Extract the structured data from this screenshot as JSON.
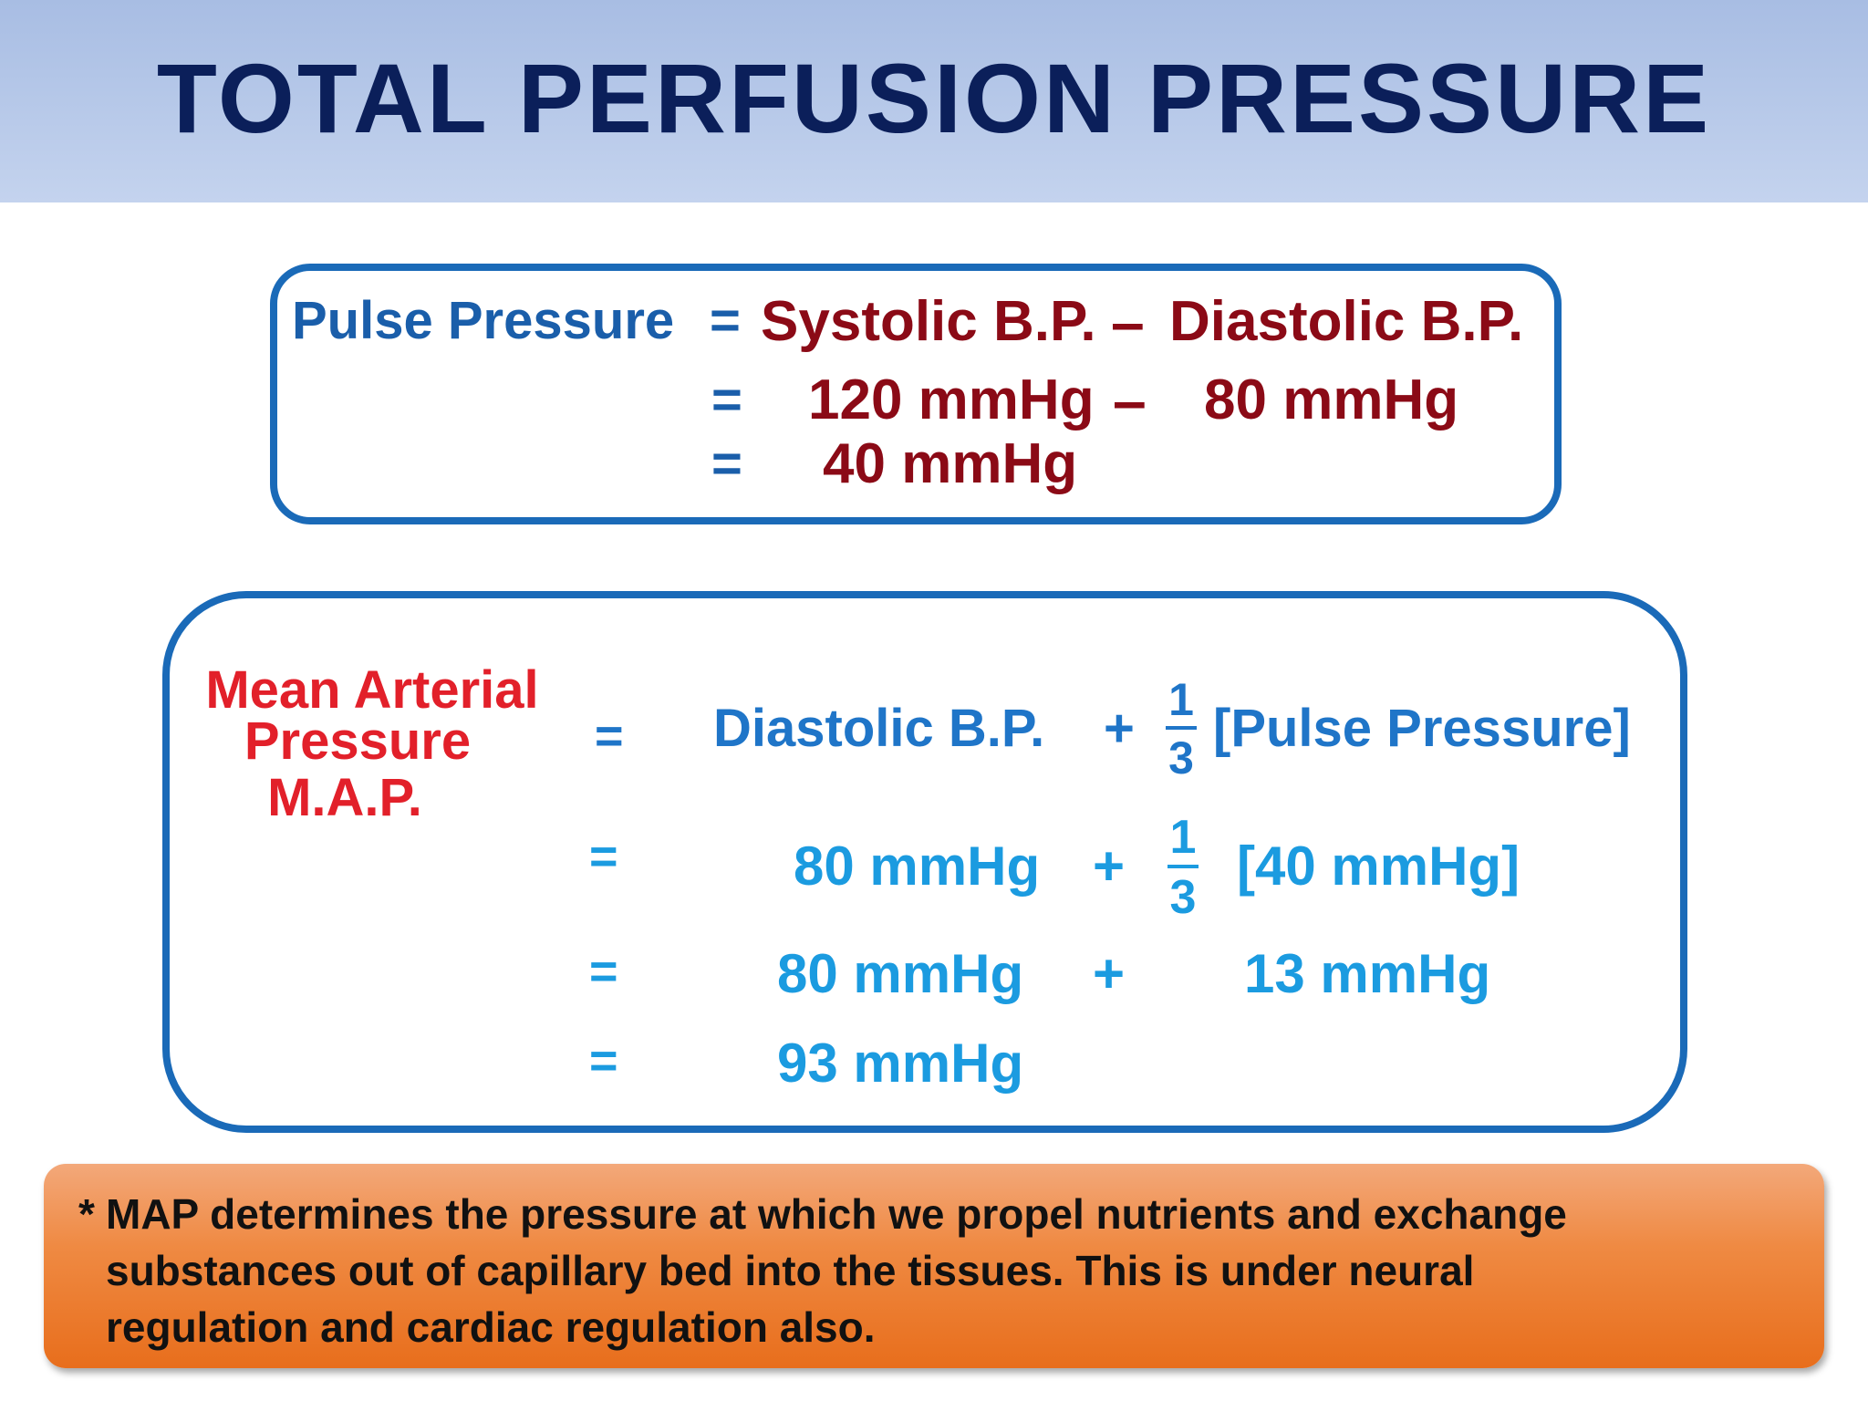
{
  "slide": {
    "title": "TOTAL PERFUSION PRESSURE"
  },
  "pulse_pressure": {
    "label": "Pulse Pressure",
    "rows": [
      {
        "eq": "=",
        "left": "Systolic B.P.",
        "op": "–",
        "right": "Diastolic B.P."
      },
      {
        "eq": "=",
        "left": "120 mmHg",
        "op": "–",
        "right": "80 mmHg"
      },
      {
        "eq": "=",
        "left": "40 mmHg"
      }
    ]
  },
  "mean_arterial_pressure": {
    "label_lines": [
      "Mean Arterial",
      "Pressure",
      "M.A.P."
    ],
    "rows": [
      {
        "eq": "=",
        "term1": "Diastolic B.P.",
        "op": "+",
        "fraction": {
          "numerator": "1",
          "denominator": "3"
        },
        "term2": "[Pulse Pressure]"
      },
      {
        "eq": "=",
        "term1": "80 mmHg",
        "op": "+",
        "fraction": {
          "numerator": "1",
          "denominator": "3"
        },
        "term2": "[40 mmHg]"
      },
      {
        "eq": "=",
        "term1": "80 mmHg",
        "op": "+",
        "term2": "13 mmHg"
      },
      {
        "eq": "=",
        "term1": "93 mmHg"
      }
    ]
  },
  "note": {
    "star": "*",
    "lines": [
      "MAP determines the pressure at which we propel nutrients and exchange",
      "substances out of capillary bed into the tissues. This is under neural",
      "regulation and cardiac regulation also."
    ]
  }
}
